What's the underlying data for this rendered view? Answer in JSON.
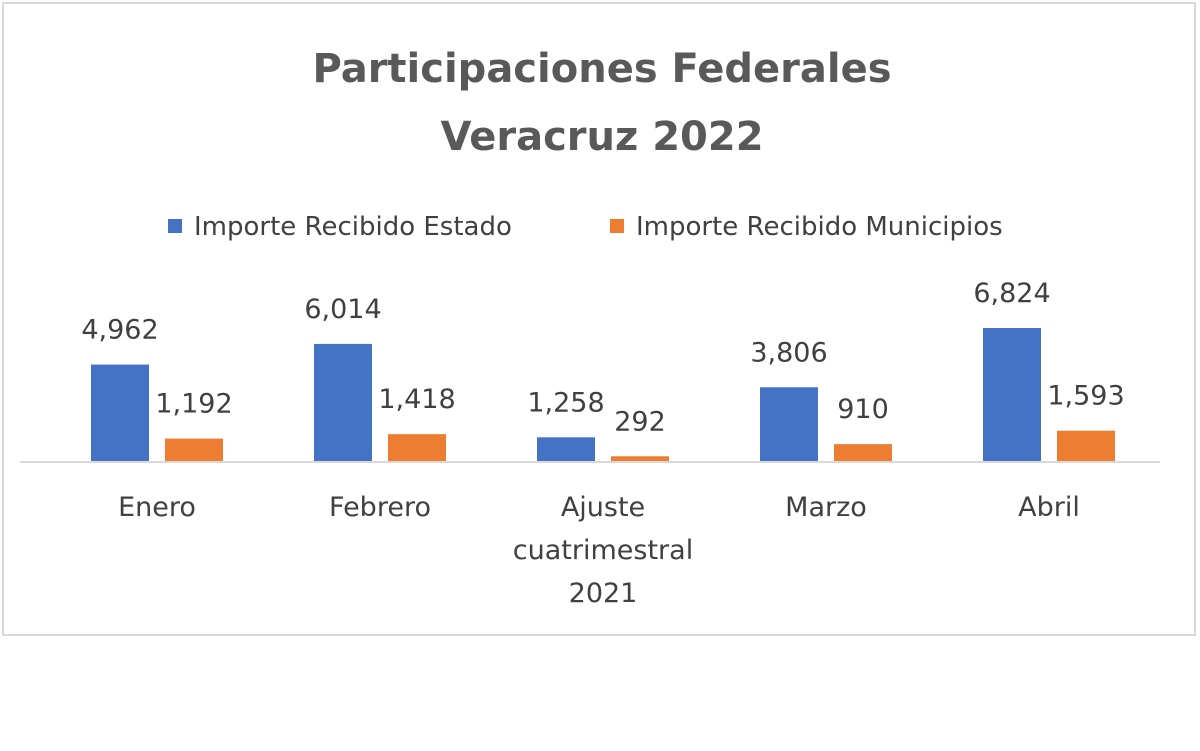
{
  "chart_data": {
    "type": "bar",
    "title_lines": [
      "Participaciones Federales",
      "Veracruz 2022"
    ],
    "categories": [
      [
        "Enero"
      ],
      [
        "Febrero"
      ],
      [
        "Ajuste",
        "cuatrimestral",
        "2021"
      ],
      [
        "Marzo"
      ],
      [
        "Abril"
      ]
    ],
    "series": [
      {
        "name": "Importe Recibido Estado",
        "color": "#4472c4",
        "values": [
          4962,
          6014,
          1258,
          3806,
          6824
        ],
        "labels": [
          "4,962",
          "6,014",
          "1,258",
          "3,806",
          "6,824"
        ]
      },
      {
        "name": "Importe Recibido Municipios",
        "color": "#ed7d31",
        "values": [
          1192,
          1418,
          292,
          910,
          1593
        ],
        "labels": [
          "1,192",
          "1,418",
          "292",
          "910",
          "1,593"
        ]
      }
    ],
    "legend_position": "top",
    "grid": false,
    "axis_color": "#d9d9d9"
  }
}
